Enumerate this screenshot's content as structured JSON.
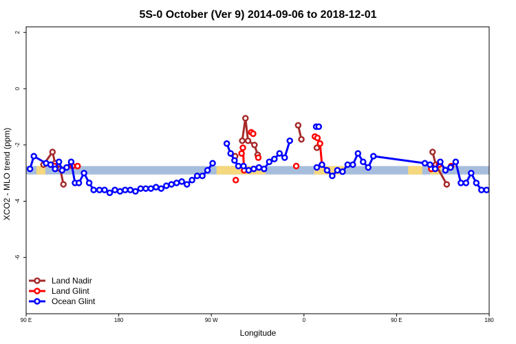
{
  "chart_data": {
    "type": "line",
    "title": "5S-0 October (Ver 9)   2014-09-06 to 2018-12-01",
    "xlabel": "Longitude",
    "ylabel": "XCO2 - MLO trend (ppm)",
    "xlim": [
      90,
      450
    ],
    "ylim": [
      -8,
      2.2
    ],
    "x_ticks": [
      {
        "value": 90,
        "label": "90 E"
      },
      {
        "value": 162,
        "label": "180"
      },
      {
        "value": 234,
        "label": "90 W"
      },
      {
        "value": 306,
        "label": "0"
      },
      {
        "value": 378,
        "label": "90 E"
      },
      {
        "value": 450,
        "label": "180"
      }
    ],
    "y_ticks": [
      {
        "value": 2,
        "label": "2"
      },
      {
        "value": 0,
        "label": "0"
      },
      {
        "value": -2,
        "label": "-2"
      },
      {
        "value": -4,
        "label": "-4"
      },
      {
        "value": -6,
        "label": "-6"
      }
    ],
    "grid": false,
    "legend_position": "bottom-left",
    "band": {
      "y_low": -3.05,
      "y_high": -2.75,
      "color": "#a7bddc",
      "land_color": "#f5d77e"
    },
    "land_segments": [
      [
        98,
        105
      ],
      [
        238,
        276
      ],
      [
        314,
        338
      ],
      [
        387,
        398
      ],
      [
        404,
        413
      ]
    ],
    "series": [
      {
        "name": "Land Nadir",
        "color": "#a52a2a",
        "points": [
          [
            103.5,
            -2.7
          ],
          [
            110.5,
            -2.25
          ],
          [
            112.5,
            -2.65
          ],
          [
            116.5,
            -2.85
          ],
          [
            119,
            -3.4
          ],
          [
            252.5,
            -2.4
          ],
          [
            258,
            -1.85
          ],
          [
            260.5,
            -1.05
          ],
          [
            262.5,
            -1.85
          ],
          [
            267.5,
            -2.0
          ],
          [
            270,
            -2.35
          ],
          [
            301.5,
            -1.3
          ],
          [
            304,
            -1.8
          ],
          [
            316,
            -2.1
          ],
          [
            406,
            -2.25
          ],
          [
            408.5,
            -2.7
          ],
          [
            417,
            -3.4
          ]
        ],
        "breaks_after": [
          4,
          5,
          10,
          12,
          13
        ]
      },
      {
        "name": "Land Glint",
        "color": "#ff0000",
        "points": [
          [
            112,
            -2.75
          ],
          [
            130,
            -2.75
          ],
          [
            126,
            -2.75
          ],
          [
            253,
            -3.25
          ],
          [
            257.5,
            -2.3
          ],
          [
            258.5,
            -2.1
          ],
          [
            259.5,
            -2.9
          ],
          [
            265,
            -1.55
          ],
          [
            266.5,
            -1.6
          ],
          [
            270.5,
            -2.45
          ],
          [
            300,
            -2.75
          ],
          [
            314.5,
            -1.7
          ],
          [
            316.5,
            -1.75
          ],
          [
            318.5,
            -1.95
          ],
          [
            320,
            -2.7
          ],
          [
            405,
            -2.85
          ],
          [
            411,
            -2.7
          ],
          [
            420.5,
            -2.75
          ]
        ],
        "breaks_after": [
          0,
          1,
          2,
          3,
          6,
          7,
          8,
          9,
          10,
          14,
          15,
          16
        ]
      },
      {
        "name": "Ocean Glint",
        "color": "#0000ff",
        "points": [
          [
            93,
            -2.85
          ],
          [
            96,
            -2.4
          ],
          [
            105.5,
            -2.65
          ],
          [
            109,
            -2.7
          ],
          [
            112.5,
            -2.85
          ],
          [
            115.5,
            -2.6
          ],
          [
            118,
            -2.9
          ],
          [
            121.5,
            -2.8
          ],
          [
            125,
            -2.6
          ],
          [
            128,
            -3.35
          ],
          [
            131,
            -3.35
          ],
          [
            135,
            -3.0
          ],
          [
            139,
            -3.35
          ],
          [
            142.5,
            -3.6
          ],
          [
            147,
            -3.6
          ],
          [
            151,
            -3.6
          ],
          [
            155,
            -3.7
          ],
          [
            159,
            -3.6
          ],
          [
            163,
            -3.65
          ],
          [
            167,
            -3.6
          ],
          [
            171,
            -3.6
          ],
          [
            175,
            -3.65
          ],
          [
            179,
            -3.55
          ],
          [
            183,
            -3.55
          ],
          [
            187,
            -3.55
          ],
          [
            191,
            -3.5
          ],
          [
            195,
            -3.55
          ],
          [
            199,
            -3.45
          ],
          [
            203,
            -3.4
          ],
          [
            207,
            -3.35
          ],
          [
            211,
            -3.3
          ],
          [
            215,
            -3.4
          ],
          [
            219,
            -3.25
          ],
          [
            223,
            -3.1
          ],
          [
            227,
            -3.1
          ],
          [
            231,
            -2.9
          ],
          [
            235,
            -2.65
          ],
          [
            246,
            -1.95
          ],
          [
            249,
            -2.3
          ],
          [
            252,
            -2.55
          ],
          [
            255,
            -2.75
          ],
          [
            259,
            -2.75
          ],
          [
            263,
            -2.9
          ],
          [
            267,
            -2.85
          ],
          [
            271,
            -2.8
          ],
          [
            275,
            -2.85
          ],
          [
            279,
            -2.6
          ],
          [
            283,
            -2.5
          ],
          [
            287,
            -2.3
          ],
          [
            291,
            -2.45
          ],
          [
            295,
            -1.85
          ],
          [
            315.5,
            -1.35
          ],
          [
            317.5,
            -1.35
          ],
          [
            316,
            -2.8
          ],
          [
            320,
            -2.7
          ],
          [
            324,
            -2.9
          ],
          [
            328,
            -3.1
          ],
          [
            332,
            -2.9
          ],
          [
            336,
            -2.95
          ],
          [
            340,
            -2.7
          ],
          [
            344,
            -2.7
          ],
          [
            348,
            -2.3
          ],
          [
            352,
            -2.6
          ],
          [
            356,
            -2.8
          ],
          [
            360,
            -2.4
          ],
          [
            400,
            -2.65
          ],
          [
            404,
            -2.7
          ],
          [
            408,
            -2.85
          ],
          [
            412,
            -2.6
          ],
          [
            416,
            -2.9
          ],
          [
            420,
            -2.8
          ],
          [
            424,
            -2.6
          ],
          [
            428,
            -3.35
          ],
          [
            432,
            -3.35
          ],
          [
            436,
            -3.0
          ],
          [
            440,
            -3.35
          ],
          [
            444,
            -3.6
          ],
          [
            448,
            -3.6
          ],
          [
            452,
            -3.6
          ],
          [
            456,
            -3.7
          ]
        ],
        "breaks_after": [
          36,
          50,
          52
        ]
      }
    ]
  }
}
